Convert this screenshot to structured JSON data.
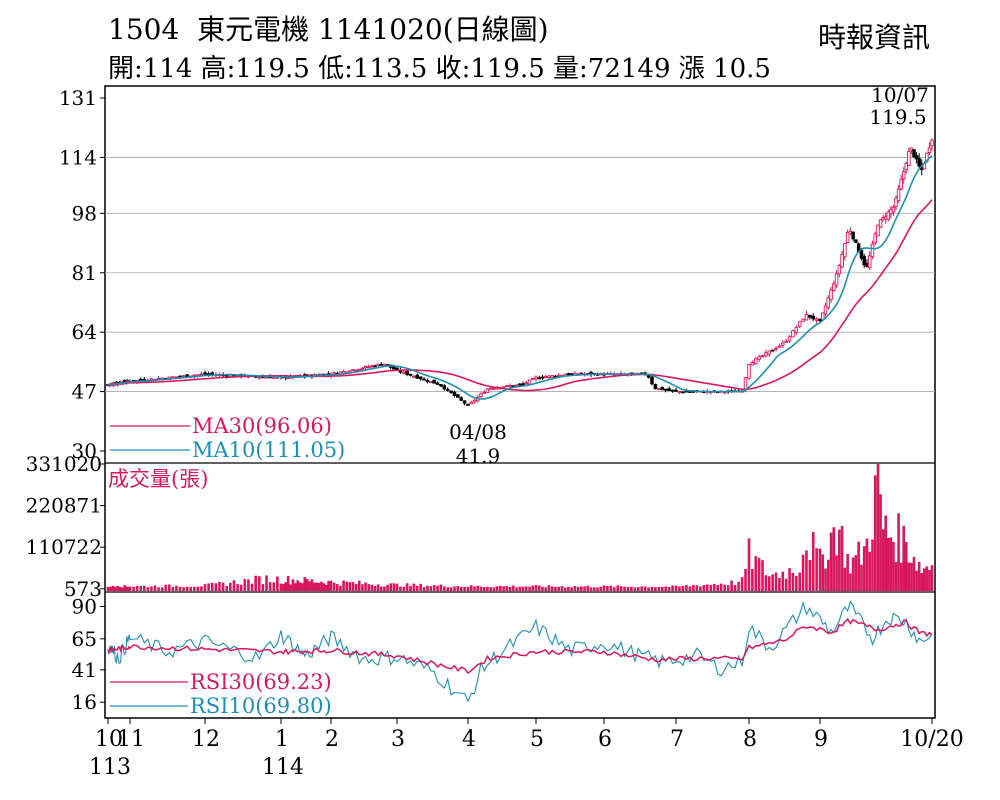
{
  "header": {
    "stock_code": "1504",
    "stock_name": "東元電機",
    "title_suffix": "1141020(日線圖)",
    "source": "時報資訊"
  },
  "ohlc_summary": "開:114 高:119.5 低:113.5 收:119.5 量:72149 漲 10.5",
  "colors": {
    "up": "#d9175d",
    "down": "#000000",
    "ma30": "#d9175d",
    "ma10": "#1f8fb0",
    "rsi30": "#d9175d",
    "rsi10": "#1f8fb0",
    "volume": "#d9175d",
    "grid": "#aaaaaa"
  },
  "chart_data": {
    "type": "candlestick",
    "price_panel": {
      "y_ticks": [
        131,
        114,
        98,
        81,
        64,
        47,
        30
      ],
      "ylim": [
        30,
        131
      ],
      "legend": [
        {
          "key": "ma30",
          "label": "MA30(96.06)"
        },
        {
          "key": "ma10",
          "label": "MA10(111.05)"
        }
      ],
      "annotations": [
        {
          "date": "10/07",
          "value": "119.5"
        },
        {
          "date": "04/08",
          "value": "41.9"
        }
      ],
      "key_points": [
        {
          "month": 10.0,
          "close": 49
        },
        {
          "month": 11.0,
          "close": 50
        },
        {
          "month": 12.0,
          "close": 52
        },
        {
          "month": 13.0,
          "close": 51
        },
        {
          "month": 14.0,
          "close": 52
        },
        {
          "month": 14.8,
          "close": 55
        },
        {
          "month": 15.0,
          "close": 53
        },
        {
          "month": 15.6,
          "close": 49
        },
        {
          "month": 16.0,
          "close": 43
        },
        {
          "month": 16.3,
          "close": 48
        },
        {
          "month": 16.8,
          "close": 49
        },
        {
          "month": 17.0,
          "close": 51
        },
        {
          "month": 17.5,
          "close": 52
        },
        {
          "month": 18.0,
          "close": 52
        },
        {
          "month": 18.6,
          "close": 52
        },
        {
          "month": 18.7,
          "close": 48
        },
        {
          "month": 19.0,
          "close": 47
        },
        {
          "month": 19.5,
          "close": 47
        },
        {
          "month": 19.9,
          "close": 47
        },
        {
          "month": 20.0,
          "close": 55
        },
        {
          "month": 20.5,
          "close": 61
        },
        {
          "month": 20.8,
          "close": 69
        },
        {
          "month": 21.0,
          "close": 67
        },
        {
          "month": 21.3,
          "close": 81
        },
        {
          "month": 21.5,
          "close": 94
        },
        {
          "month": 21.8,
          "close": 82
        },
        {
          "month": 22.0,
          "close": 95
        },
        {
          "month": 22.3,
          "close": 100
        },
        {
          "month": 22.6,
          "close": 117
        },
        {
          "month": 22.8,
          "close": 110
        },
        {
          "month": 23.0,
          "close": 119.5
        }
      ]
    },
    "volume_panel": {
      "label": "成交量(張)",
      "y_ticks": [
        331020,
        220871,
        110722,
        573
      ],
      "ylim": [
        0,
        331020
      ],
      "key_points": [
        {
          "month": 10.0,
          "v": 6000
        },
        {
          "month": 12.0,
          "v": 10000
        },
        {
          "month": 12.8,
          "v": 30000
        },
        {
          "month": 15.0,
          "v": 12000
        },
        {
          "month": 16.0,
          "v": 8000
        },
        {
          "month": 19.0,
          "v": 7000
        },
        {
          "month": 19.9,
          "v": 20000
        },
        {
          "month": 20.0,
          "v": 100000
        },
        {
          "month": 20.3,
          "v": 40000
        },
        {
          "month": 20.7,
          "v": 60000
        },
        {
          "month": 20.8,
          "v": 160000
        },
        {
          "month": 21.0,
          "v": 80000
        },
        {
          "month": 21.3,
          "v": 190000
        },
        {
          "month": 21.5,
          "v": 70000
        },
        {
          "month": 21.8,
          "v": 120000
        },
        {
          "month": 22.0,
          "v": 331020
        },
        {
          "month": 22.1,
          "v": 170000
        },
        {
          "month": 22.5,
          "v": 140000
        },
        {
          "month": 22.8,
          "v": 60000
        },
        {
          "month": 23.0,
          "v": 72149
        }
      ]
    },
    "rsi_panel": {
      "y_ticks": [
        90,
        65,
        41,
        16
      ],
      "ylim": [
        10,
        95
      ],
      "legend": [
        {
          "key": "rsi30",
          "label": "RSI30(69.23)"
        },
        {
          "key": "rsi10",
          "label": "RSI10(69.80)"
        }
      ],
      "rsi30_points": [
        {
          "month": 10.0,
          "v": 56
        },
        {
          "month": 11.0,
          "v": 59
        },
        {
          "month": 12.0,
          "v": 57
        },
        {
          "month": 13.0,
          "v": 55
        },
        {
          "month": 14.0,
          "v": 56
        },
        {
          "month": 15.0,
          "v": 52
        },
        {
          "month": 16.0,
          "v": 40
        },
        {
          "month": 16.3,
          "v": 50
        },
        {
          "month": 17.0,
          "v": 55
        },
        {
          "month": 18.0,
          "v": 55
        },
        {
          "month": 18.7,
          "v": 49
        },
        {
          "month": 19.5,
          "v": 50
        },
        {
          "month": 19.9,
          "v": 49
        },
        {
          "month": 20.0,
          "v": 58
        },
        {
          "month": 20.5,
          "v": 64
        },
        {
          "month": 20.8,
          "v": 75
        },
        {
          "month": 21.2,
          "v": 70
        },
        {
          "month": 21.5,
          "v": 79
        },
        {
          "month": 22.0,
          "v": 72
        },
        {
          "month": 22.5,
          "v": 78
        },
        {
          "month": 22.8,
          "v": 69
        },
        {
          "month": 23.0,
          "v": 69.23
        }
      ],
      "rsi10_points": [
        {
          "month": 10.0,
          "v": 60
        },
        {
          "month": 10.5,
          "v": 50
        },
        {
          "month": 11.0,
          "v": 66
        },
        {
          "month": 11.5,
          "v": 55
        },
        {
          "month": 12.0,
          "v": 63
        },
        {
          "month": 12.7,
          "v": 50
        },
        {
          "month": 13.0,
          "v": 68
        },
        {
          "month": 13.5,
          "v": 52
        },
        {
          "month": 14.0,
          "v": 66
        },
        {
          "month": 14.5,
          "v": 49
        },
        {
          "month": 15.0,
          "v": 51
        },
        {
          "month": 15.5,
          "v": 40
        },
        {
          "month": 16.0,
          "v": 16
        },
        {
          "month": 16.2,
          "v": 42
        },
        {
          "month": 16.5,
          "v": 55
        },
        {
          "month": 17.0,
          "v": 74
        },
        {
          "month": 17.5,
          "v": 56
        },
        {
          "month": 18.0,
          "v": 62
        },
        {
          "month": 18.5,
          "v": 52
        },
        {
          "month": 18.8,
          "v": 47
        },
        {
          "month": 19.3,
          "v": 52
        },
        {
          "month": 19.6,
          "v": 42
        },
        {
          "month": 19.9,
          "v": 47
        },
        {
          "month": 20.0,
          "v": 74
        },
        {
          "month": 20.3,
          "v": 58
        },
        {
          "month": 20.8,
          "v": 90
        },
        {
          "month": 21.2,
          "v": 70
        },
        {
          "month": 21.5,
          "v": 90
        },
        {
          "month": 21.9,
          "v": 66
        },
        {
          "month": 22.2,
          "v": 82
        },
        {
          "month": 22.5,
          "v": 79
        },
        {
          "month": 22.8,
          "v": 62
        },
        {
          "month": 23.0,
          "v": 69.8
        }
      ]
    },
    "x_axis": {
      "ticks": [
        {
          "month": 10.0,
          "label": "10"
        },
        {
          "month": 11.0,
          "label": "11"
        },
        {
          "month": 12.0,
          "label": "12"
        },
        {
          "month": 13.0,
          "label": "1"
        },
        {
          "month": 14.0,
          "label": "2"
        },
        {
          "month": 15.0,
          "label": "3"
        },
        {
          "month": 16.0,
          "label": "4"
        },
        {
          "month": 17.0,
          "label": "5"
        },
        {
          "month": 18.0,
          "label": "6"
        },
        {
          "month": 19.0,
          "label": "7"
        },
        {
          "month": 20.0,
          "label": "8"
        },
        {
          "month": 21.0,
          "label": "9"
        },
        {
          "month": 23.0,
          "label": "10/20"
        }
      ],
      "years": [
        {
          "month": 10.0,
          "label": "113"
        },
        {
          "month": 13.0,
          "label": "114"
        }
      ]
    }
  }
}
